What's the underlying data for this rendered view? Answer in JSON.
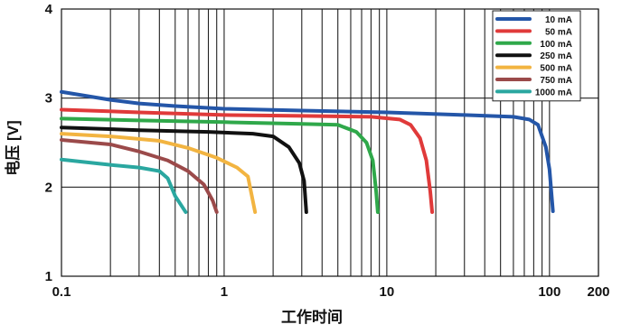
{
  "chart_data": {
    "type": "line",
    "x_scale": "log",
    "xlim": [
      0.1,
      200
    ],
    "ylim": [
      1,
      4
    ],
    "xlabel": "工作时间",
    "ylabel": "电压 [V]",
    "x_ticks": [
      {
        "value": 0.1,
        "label": "0.1"
      },
      {
        "value": 1,
        "label": "1"
      },
      {
        "value": 10,
        "label": "10"
      },
      {
        "value": 100,
        "label": "100"
      },
      {
        "value": 200,
        "label": "200"
      }
    ],
    "y_ticks": [
      {
        "value": 1,
        "label": "1"
      },
      {
        "value": 2,
        "label": "2"
      },
      {
        "value": 3,
        "label": "3"
      },
      {
        "value": 4,
        "label": "4"
      }
    ],
    "grid": true,
    "legend_position": "top-right",
    "series": [
      {
        "name": "10 mA",
        "color": "#2456a8",
        "points": [
          [
            0.1,
            3.07
          ],
          [
            0.2,
            2.98
          ],
          [
            0.3,
            2.94
          ],
          [
            0.5,
            2.91
          ],
          [
            1,
            2.88
          ],
          [
            3,
            2.86
          ],
          [
            10,
            2.84
          ],
          [
            30,
            2.81
          ],
          [
            60,
            2.79
          ],
          [
            75,
            2.76
          ],
          [
            85,
            2.7
          ],
          [
            95,
            2.45
          ],
          [
            100,
            2.2
          ],
          [
            105,
            1.73
          ]
        ]
      },
      {
        "name": "50 mA",
        "color": "#e03a3a",
        "points": [
          [
            0.1,
            2.87
          ],
          [
            0.3,
            2.84
          ],
          [
            1,
            2.81
          ],
          [
            3,
            2.8
          ],
          [
            8,
            2.79
          ],
          [
            12,
            2.76
          ],
          [
            14,
            2.7
          ],
          [
            16,
            2.55
          ],
          [
            17.5,
            2.3
          ],
          [
            18.5,
            1.95
          ],
          [
            19,
            1.72
          ]
        ]
      },
      {
        "name": "100 mA",
        "color": "#2fa84a",
        "points": [
          [
            0.1,
            2.77
          ],
          [
            0.3,
            2.75
          ],
          [
            1,
            2.73
          ],
          [
            3,
            2.71
          ],
          [
            5,
            2.7
          ],
          [
            6.5,
            2.62
          ],
          [
            7.5,
            2.5
          ],
          [
            8.2,
            2.3
          ],
          [
            8.6,
            1.95
          ],
          [
            8.8,
            1.72
          ]
        ]
      },
      {
        "name": "250 mA",
        "color": "#111111",
        "points": [
          [
            0.1,
            2.67
          ],
          [
            0.3,
            2.64
          ],
          [
            0.8,
            2.62
          ],
          [
            1.5,
            2.6
          ],
          [
            2,
            2.57
          ],
          [
            2.5,
            2.45
          ],
          [
            2.9,
            2.27
          ],
          [
            3.1,
            2.07
          ],
          [
            3.2,
            1.72
          ]
        ]
      },
      {
        "name": "500 mA",
        "color": "#f2b441",
        "points": [
          [
            0.1,
            2.6
          ],
          [
            0.2,
            2.57
          ],
          [
            0.4,
            2.52
          ],
          [
            0.6,
            2.44
          ],
          [
            0.9,
            2.33
          ],
          [
            1.2,
            2.22
          ],
          [
            1.4,
            2.12
          ],
          [
            1.55,
            1.72
          ]
        ]
      },
      {
        "name": "750 mA",
        "color": "#9b4a4a",
        "points": [
          [
            0.1,
            2.53
          ],
          [
            0.2,
            2.48
          ],
          [
            0.3,
            2.4
          ],
          [
            0.45,
            2.3
          ],
          [
            0.6,
            2.18
          ],
          [
            0.75,
            2.03
          ],
          [
            0.85,
            1.85
          ],
          [
            0.9,
            1.72
          ]
        ]
      },
      {
        "name": "1000 mA",
        "color": "#2aa7a0",
        "points": [
          [
            0.1,
            2.31
          ],
          [
            0.2,
            2.25
          ],
          [
            0.3,
            2.22
          ],
          [
            0.4,
            2.18
          ],
          [
            0.45,
            2.1
          ],
          [
            0.5,
            1.9
          ],
          [
            0.58,
            1.72
          ]
        ]
      }
    ]
  }
}
